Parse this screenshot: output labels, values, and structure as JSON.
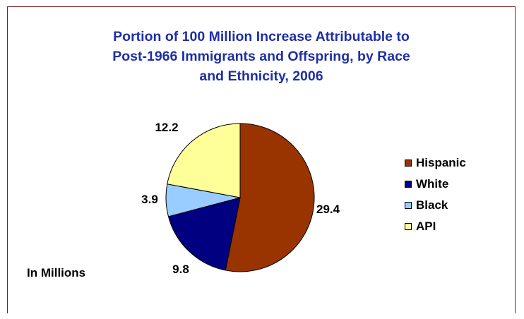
{
  "chart_data": {
    "type": "pie",
    "title": "Portion of 100 Million Increase Attributable to Post-1966 Immigrants and Offspring, by Race and Ethnicity, 2006",
    "title_lines": [
      "Portion of 100 Million Increase Attributable to",
      "Post-1966 Immigrants and Offspring, by Race",
      "and Ethnicity, 2006"
    ],
    "categories": [
      "Hispanic",
      "White",
      "Black",
      "API"
    ],
    "values": [
      29.4,
      9.8,
      3.9,
      12.2
    ],
    "data_labels": [
      "29.4",
      "9.8",
      "3.9",
      "12.2"
    ],
    "colors": [
      "#993300",
      "#000080",
      "#99ccff",
      "#ffff99"
    ],
    "legend_position": "right",
    "annotation": "In Millions"
  }
}
